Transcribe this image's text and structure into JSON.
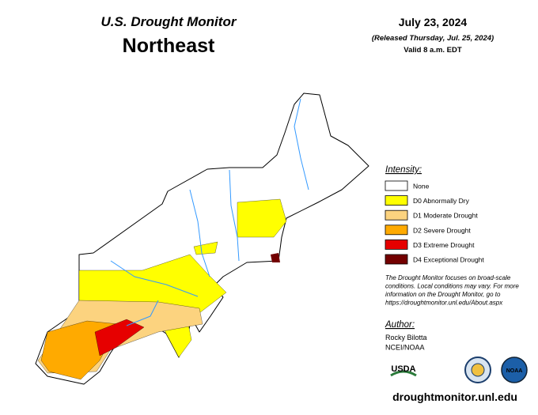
{
  "header": {
    "title": "U.S. Drought Monitor",
    "region": "Northeast",
    "date": "July 23, 2024",
    "released": "(Released Thursday, Jul. 25, 2024)",
    "valid": "Valid 8 a.m. EDT"
  },
  "legend": {
    "title": "Intensity:",
    "items": [
      {
        "label": "None",
        "color": "#ffffff"
      },
      {
        "label": "D0 Abnormally Dry",
        "color": "#ffff00"
      },
      {
        "label": "D1 Moderate Drought",
        "color": "#fcd37f"
      },
      {
        "label": "D2 Severe Drought",
        "color": "#ffaa00"
      },
      {
        "label": "D3 Extreme Drought",
        "color": "#e60000"
      },
      {
        "label": "D4 Exceptional Drought",
        "color": "#730000"
      }
    ]
  },
  "note": [
    "The Drought Monitor focuses on broad-scale",
    "conditions. Local conditions may vary. For more",
    "information on the Drought Monitor, go to",
    "https://droughtmonitor.unl.edu/About.aspx"
  ],
  "author": {
    "title": "Author:",
    "lines": [
      "Rocky Bilotta",
      "NCEI/NOAA"
    ]
  },
  "logos": [
    "USDA",
    "NDMC",
    "NOAA"
  ],
  "url": "droughtmonitor.unl.edu"
}
